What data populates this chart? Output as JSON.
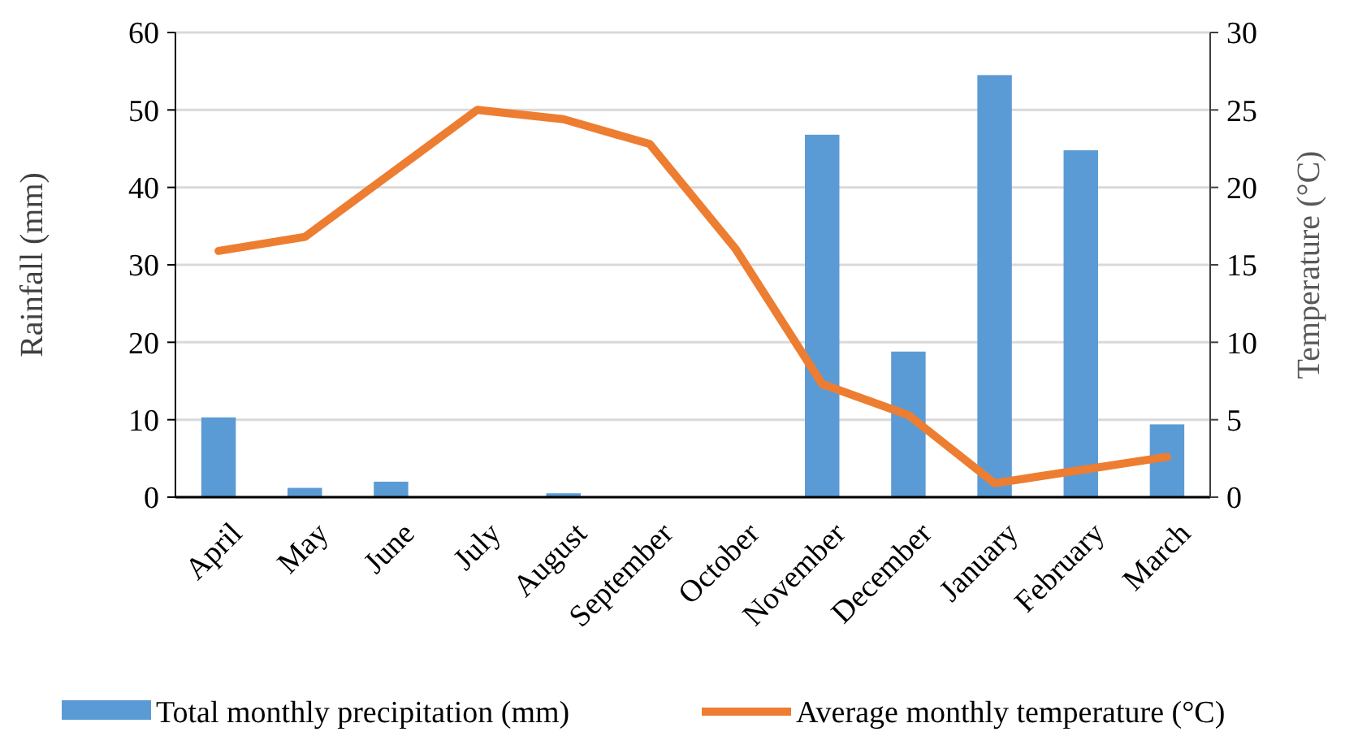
{
  "chart_data": {
    "type": "bar",
    "categories": [
      "April",
      "May",
      "June",
      "July",
      "August",
      "September",
      "October",
      "November",
      "December",
      "January",
      "February",
      "March"
    ],
    "series": [
      {
        "name": "Total monthly precipitation (mm)",
        "color": "#5b9bd5",
        "values": [
          10.3,
          1.2,
          2.0,
          0,
          0.5,
          0,
          0,
          46.8,
          18.8,
          54.5,
          44.8,
          9.4
        ]
      },
      {
        "name": "Average monthly temperature (°C)",
        "type": "line",
        "axis": "y2",
        "color": "#ed7d31",
        "values": [
          15.9,
          16.8,
          20.9,
          25.0,
          24.4,
          22.8,
          16.0,
          7.3,
          5.3,
          0.9,
          null,
          2.6
        ]
      }
    ],
    "ylabel": "Rainfall (mm)",
    "y2label": "Temperature (°C)",
    "ylim": [
      0,
      60
    ],
    "yticks": [
      0,
      10,
      20,
      30,
      40,
      50,
      60
    ],
    "y2lim": [
      0,
      30
    ],
    "y2ticks": [
      0,
      5,
      10,
      15,
      20,
      25,
      30
    ],
    "grid": "y",
    "legend": "bottom",
    "marker": "none",
    "line_style": "solid"
  }
}
